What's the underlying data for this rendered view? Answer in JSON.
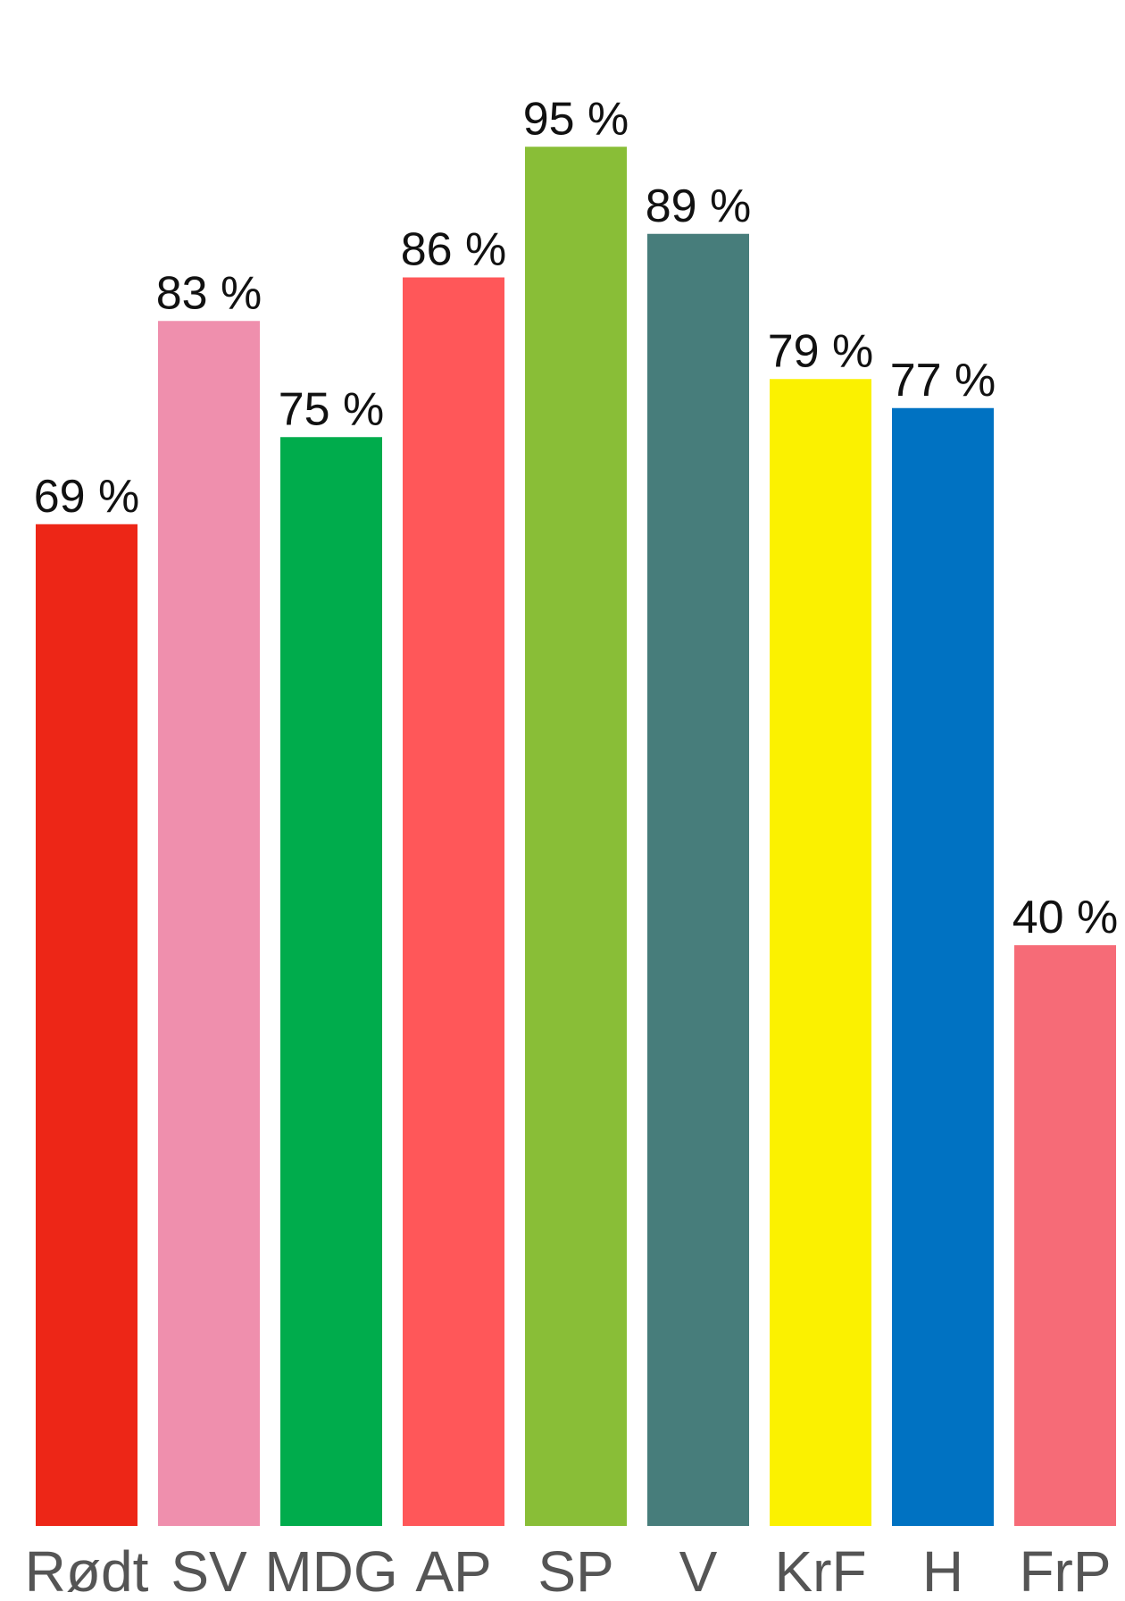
{
  "chart_data": {
    "type": "bar",
    "title": "",
    "xlabel": "",
    "ylabel": "",
    "ylim": [
      0,
      100
    ],
    "grid": false,
    "legend": "none",
    "categories": [
      "Rødt",
      "SV",
      "MDG",
      "AP",
      "SP",
      "V",
      "KrF",
      "H",
      "FrP"
    ],
    "values": [
      69,
      83,
      75,
      86,
      95,
      89,
      79,
      77,
      40
    ],
    "value_labels": [
      "69 %",
      "83 %",
      "75 %",
      "86 %",
      "95 %",
      "89 %",
      "79 %",
      "77 %",
      "40 %"
    ],
    "colors": [
      "#ed2617",
      "#ef8fad",
      "#00ac4c",
      "#ff5759",
      "#89be37",
      "#477d7b",
      "#fbf100",
      "#0072c2",
      "#f66b77"
    ]
  }
}
